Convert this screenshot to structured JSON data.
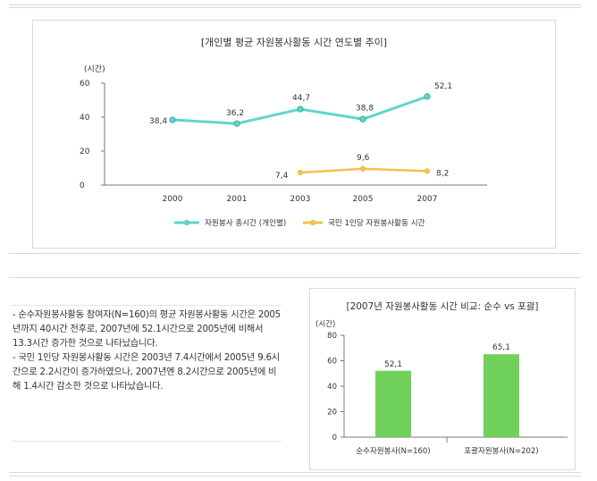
{
  "description": {
    "paragraph1": "- 순수자원봉사활동 참여자(N=160)의 평균 자원봉사활동 시간은 2005년까지 40시간 전후로, 2007년에 52.1시간으로 2005년에 비해서 13.3시간 증가한 것으로 나타났습니다.",
    "paragraph2": "- 국민 1인당 자원봉사활동 시간은 2003년 7.4시간에서 2005년 9.6시간으로 2.2시간이 증가하였으나, 2007년엔 8.2시간으로 2005년에 비해 1.4시간 감소한 것으로 나타났습니다."
  },
  "chart_data": [
    {
      "type": "line",
      "title": "[개인별 평균 자원봉사활동 시간 연도별 추이]",
      "yunit": "(시간)",
      "categories": [
        "2000",
        "2001",
        "2003",
        "2005",
        "2007"
      ],
      "ylim": [
        0,
        60
      ],
      "yticks": [
        0,
        20,
        40,
        60
      ],
      "grid": false,
      "legend_position": "bottom",
      "series": [
        {
          "name": "자원봉사 총시간 (개인별)",
          "color": "#5fd6c9",
          "values": [
            38.4,
            36.2,
            44.7,
            38.8,
            52.1
          ],
          "labels": [
            "38,4",
            "36,2",
            "44,7",
            "38,8",
            "52,1"
          ]
        },
        {
          "name": "국민 1인당 자원봉사활동 시간",
          "color": "#f2c14e",
          "values": [
            null,
            null,
            7.4,
            9.6,
            8.2
          ],
          "labels": [
            null,
            null,
            "7,4",
            "9,6",
            "8,2"
          ]
        }
      ]
    },
    {
      "type": "bar",
      "title": "[2007년 자원봉사활동 시간 비교: 순수 vs 포괄]",
      "yunit": "(시간)",
      "categories": [
        "순수자원봉사(N=160)",
        "포괄자원봉사(N=202)"
      ],
      "values": [
        52.1,
        65.1
      ],
      "labels": [
        "52,1",
        "65,1"
      ],
      "ylim": [
        0,
        80
      ],
      "yticks": [
        0,
        20,
        40,
        60,
        80
      ],
      "bar_color": "#6fd05a",
      "grid": false
    }
  ]
}
